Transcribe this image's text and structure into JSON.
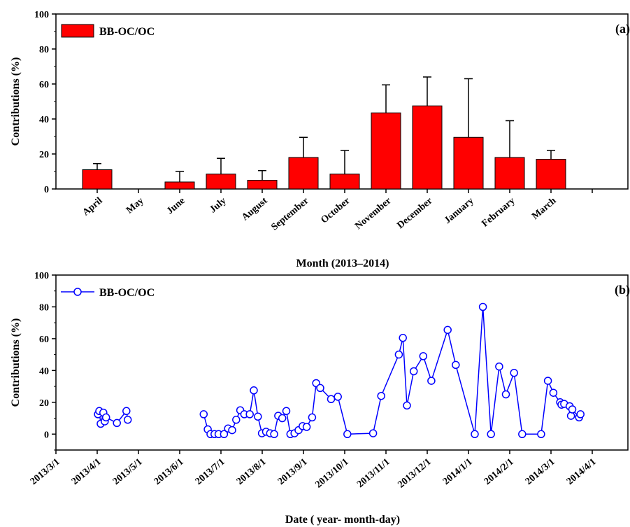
{
  "chart_data": [
    {
      "type": "bar",
      "panel_label": "(a)",
      "legend": "BB-OC/OC",
      "legend_position": "top-left",
      "bar_color": "#ff0000",
      "xlabel": "Month (2013–2014)",
      "ylabel": "Contributions (%)",
      "ylim": [
        0,
        100
      ],
      "yticks": [
        "0",
        "20",
        "40",
        "60",
        "80",
        "100"
      ],
      "categories": [
        "April",
        "May",
        "June",
        "July",
        "August",
        "September",
        "October",
        "November",
        "December",
        "January",
        "February",
        "March"
      ],
      "values": [
        11,
        null,
        4,
        8.5,
        5,
        18,
        8.5,
        43.5,
        47.5,
        29.5,
        18,
        17
      ],
      "error_upper": [
        3.5,
        null,
        6,
        9,
        5.5,
        11.5,
        13.5,
        16,
        16.5,
        33.5,
        21,
        5
      ]
    },
    {
      "type": "line",
      "panel_label": "(b)",
      "legend": "BB-OC/OC",
      "legend_position": "top-left",
      "line_color": "#0000ff",
      "marker": "open-circle",
      "xlabel": "Date ( year- month-day)",
      "ylabel": "Contributions (%)",
      "ylim": [
        -10,
        100
      ],
      "yticks": [
        "0",
        "20",
        "40",
        "60",
        "80",
        "100"
      ],
      "xticks": [
        "2013/3/1",
        "2013/4/1",
        "2013/5/1",
        "2013/6/1",
        "2013/7/1",
        "2013/8/1",
        "2013/9/1",
        "2013/10/1",
        "2013/11/1",
        "2013/12/1",
        "2014/1/1",
        "2014/2/1",
        "2014/3/1",
        "2014/4/1"
      ],
      "segments": [
        [
          [
            "2013/4/1",
            12.5
          ],
          [
            "2013/4/2",
            14.5
          ],
          [
            "2013/4/3",
            6.5
          ],
          [
            "2013/4/5",
            13.5
          ],
          [
            "2013/4/6",
            8
          ],
          [
            "2013/4/7",
            10.5
          ],
          [
            "2013/4/15",
            7
          ],
          [
            "2013/4/22",
            14.5
          ],
          [
            "2013/4/23",
            9
          ]
        ],
        [
          [
            "2013/6/18",
            12.5
          ],
          [
            "2013/6/21",
            3
          ],
          [
            "2013/6/23",
            0
          ],
          [
            "2013/6/26",
            0
          ],
          [
            "2013/6/29",
            0
          ],
          [
            "2013/7/3",
            0
          ],
          [
            "2013/7/6",
            3.5
          ],
          [
            "2013/7/9",
            2.5
          ],
          [
            "2013/7/12",
            9
          ],
          [
            "2013/7/15",
            15
          ],
          [
            "2013/7/18",
            12.5
          ],
          [
            "2013/7/22",
            12.5
          ],
          [
            "2013/7/25",
            27.5
          ],
          [
            "2013/7/28",
            11
          ],
          [
            "2013/7/31",
            0.5
          ],
          [
            "2013/8/3",
            1.5
          ],
          [
            "2013/8/6",
            0.5
          ],
          [
            "2013/8/9",
            0
          ],
          [
            "2013/8/12",
            11.5
          ],
          [
            "2013/8/15",
            10
          ],
          [
            "2013/8/18",
            14.5
          ],
          [
            "2013/8/21",
            0
          ],
          [
            "2013/8/24",
            0.5
          ],
          [
            "2013/8/27",
            2.5
          ],
          [
            "2013/8/30",
            5
          ],
          [
            "2013/9/2",
            4.5
          ],
          [
            "2013/9/6",
            10.5
          ],
          [
            "2013/9/9",
            32
          ],
          [
            "2013/9/12",
            29
          ],
          [
            "2013/9/20",
            22
          ],
          [
            "2013/9/25",
            23.5
          ],
          [
            "2013/10/2",
            0
          ],
          [
            "2013/10/21",
            0.5
          ],
          [
            "2013/10/27",
            24
          ],
          [
            "2013/11/9",
            50
          ],
          [
            "2013/11/12",
            60.5
          ],
          [
            "2013/11/15",
            18
          ],
          [
            "2013/11/20",
            39.5
          ],
          [
            "2013/11/27",
            49
          ],
          [
            "2013/12/3",
            33.5
          ],
          [
            "2013/12/15",
            65.5
          ],
          [
            "2013/12/21",
            43.5
          ],
          [
            "2014/1/4",
            0
          ],
          [
            "2014/1/10",
            80
          ],
          [
            "2014/1/16",
            0
          ],
          [
            "2014/1/22",
            42.5
          ],
          [
            "2014/1/27",
            25
          ],
          [
            "2014/2/2",
            38.5
          ],
          [
            "2014/2/8",
            0
          ],
          [
            "2014/2/22",
            0
          ],
          [
            "2014/2/27",
            33.5
          ],
          [
            "2014/3/3",
            26
          ],
          [
            "2014/3/8",
            20
          ],
          [
            "2014/3/9",
            18.5
          ],
          [
            "2014/3/11",
            19
          ],
          [
            "2014/3/15",
            17.5
          ],
          [
            "2014/3/16",
            11.5
          ],
          [
            "2014/3/17",
            15.5
          ],
          [
            "2014/3/22",
            10.5
          ],
          [
            "2014/3/23",
            12.5
          ]
        ]
      ]
    }
  ]
}
